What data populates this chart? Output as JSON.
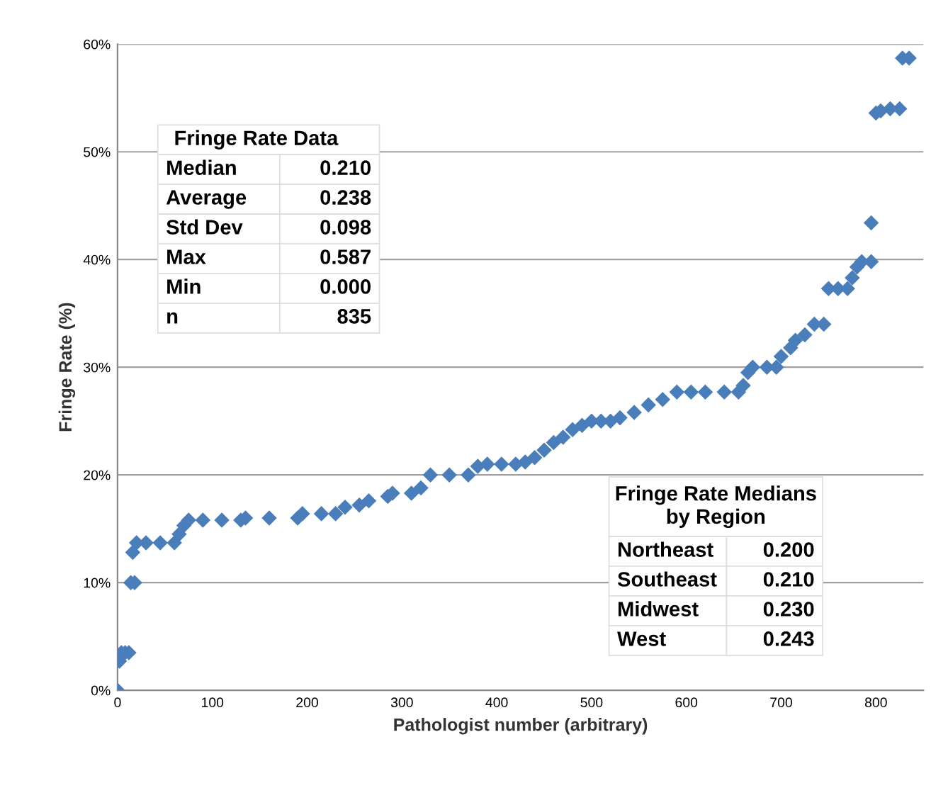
{
  "chart_data": {
    "type": "scatter",
    "xlabel": "Pathologist number (arbitrary)",
    "ylabel": "Fringe Rate (%)",
    "x": [
      0,
      2,
      4,
      8,
      12,
      14,
      18,
      16,
      20,
      30,
      45,
      60,
      65,
      70,
      75,
      90,
      110,
      130,
      135,
      160,
      190,
      195,
      215,
      230,
      240,
      255,
      265,
      285,
      290,
      310,
      320,
      330,
      350,
      370,
      380,
      390,
      405,
      420,
      430,
      440,
      450,
      460,
      470,
      480,
      490,
      500,
      510,
      520,
      530,
      545,
      560,
      575,
      590,
      605,
      620,
      640,
      655,
      660,
      665,
      670,
      685,
      695,
      700,
      710,
      715,
      725,
      735,
      745,
      750,
      760,
      770,
      775,
      780,
      785,
      795,
      795,
      800,
      805,
      815,
      825,
      828,
      835
    ],
    "series": [
      {
        "color": "#4a7ebb",
        "values": [
          0,
          2.7,
          3.5,
          3.5,
          3.5,
          10,
          10,
          12.8,
          13.7,
          13.7,
          13.7,
          13.7,
          14.5,
          15.3,
          15.8,
          15.8,
          15.8,
          15.8,
          16.0,
          16.0,
          16.0,
          16.4,
          16.4,
          16.4,
          17.0,
          17.2,
          17.6,
          18.0,
          18.3,
          18.3,
          18.8,
          20.0,
          20.0,
          20.0,
          20.8,
          21.0,
          21.0,
          21.0,
          21.2,
          21.6,
          22.3,
          23.0,
          23.5,
          24.2,
          24.6,
          25.0,
          25.0,
          25.0,
          25.3,
          25.8,
          26.5,
          27.0,
          27.7,
          27.7,
          27.7,
          27.7,
          27.7,
          28.3,
          29.5,
          30.0,
          30.0,
          30.0,
          31.0,
          31.8,
          32.5,
          33.0,
          34.0,
          34.0,
          37.3,
          37.3,
          37.3,
          38.3,
          39.3,
          39.8,
          39.8,
          43.4,
          53.6,
          53.8,
          54.0,
          54.0,
          58.7,
          58.7
        ]
      }
    ],
    "xlim": [
      0,
      850
    ],
    "xticks": [
      0,
      100,
      200,
      300,
      400,
      500,
      600,
      700,
      800
    ],
    "ylim": [
      0,
      60
    ],
    "yticks": [
      {
        "value": 0,
        "label": "0%"
      },
      {
        "value": 10,
        "label": "10%"
      },
      {
        "value": 20,
        "label": "20%"
      },
      {
        "value": 30,
        "label": "30%"
      },
      {
        "value": 40,
        "label": "40%"
      },
      {
        "value": 50,
        "label": "50%"
      },
      {
        "value": 60,
        "label": "60%"
      }
    ],
    "grid": "y",
    "marker": "diamond",
    "annotations": [
      "Fringe Rate Data",
      "Median\t0.210",
      "Average\t0.238",
      "Std Dev\t0.098",
      "Max\t0.587",
      "Min\t0.000",
      "n\t835",
      "Fringe Rate Medians\nby Region",
      "Northeast\t0.200",
      "Southeast\t0.210",
      "Midwest\t0.230",
      "West\t0.243"
    ]
  }
}
